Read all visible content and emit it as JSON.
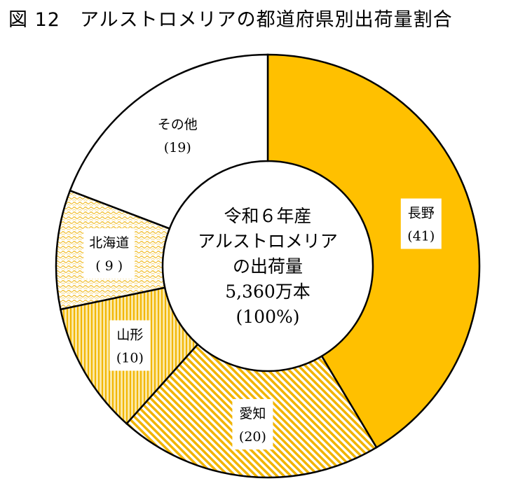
{
  "title": "図 12　アルストロメリアの都道府県別出荷量割合",
  "chart_data": {
    "type": "pie",
    "title": "図 12　アルストロメリアの都道府県別出荷量割合",
    "center_lines": [
      "令和６年産",
      "アルストロメリア",
      "の出荷量",
      "5,360万本",
      "(100%)"
    ],
    "slices": [
      {
        "label": "長野",
        "value": 41,
        "value_text": "(41)",
        "color": "#FFC000",
        "pattern": "solid"
      },
      {
        "label": "愛知",
        "value": 20,
        "value_text": "(20)",
        "color": "#FFC000",
        "pattern": "diagonal"
      },
      {
        "label": "山形",
        "value": 10,
        "value_text": "(10)",
        "color": "#FFC000",
        "pattern": "vertical"
      },
      {
        "label": "北海道",
        "value": 9,
        "value_text": "( 9 )",
        "color": "#FFC000",
        "pattern": "wave"
      },
      {
        "label": "その他",
        "value": 19,
        "value_text": "(19)",
        "color": "#FFFFFF",
        "pattern": "none"
      }
    ],
    "unit": "%"
  }
}
